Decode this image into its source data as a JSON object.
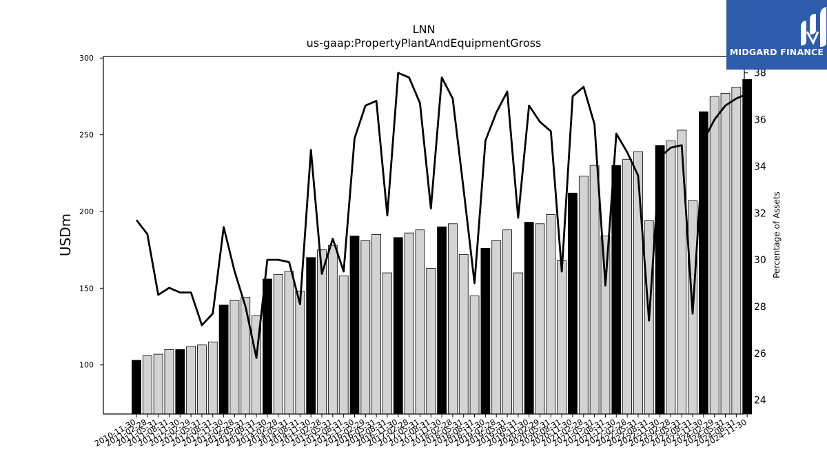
{
  "chart_data": {
    "type": "bar",
    "title": "LNN",
    "subtitle": "us-gaap:PropertyPlantAndEquipmentGross",
    "ylabel": "USDm",
    "y2label": "Percentage of Assets",
    "ylim": [
      68,
      301
    ],
    "y2lim": [
      23.4,
      38.7
    ],
    "yticks": [
      100,
      150,
      200,
      250,
      300
    ],
    "y2ticks": [
      24,
      26,
      28,
      30,
      32,
      34,
      36,
      38
    ],
    "grid": false,
    "colors": {
      "annual_bar": "#000000",
      "quarter_bar": "#d3d3d3",
      "line": "#000000",
      "bar_edge": "#000000"
    },
    "categories": [
      "2010-11-30",
      "2011-02-28",
      "2011-05-31",
      "2011-08-31",
      "2011-11-30",
      "2012-02-29",
      "2012-05-31",
      "2012-08-31",
      "2012-11-30",
      "2013-02-28",
      "2013-05-31",
      "2013-08-31",
      "2013-11-30",
      "2014-02-28",
      "2014-05-31",
      "2014-08-31",
      "2014-11-30",
      "2015-02-28",
      "2015-05-31",
      "2015-08-31",
      "2015-11-30",
      "2016-02-29",
      "2016-05-31",
      "2016-08-31",
      "2016-11-30",
      "2017-02-28",
      "2017-05-31",
      "2017-08-31",
      "2017-11-30",
      "2018-02-28",
      "2018-05-31",
      "2018-08-31",
      "2018-11-30",
      "2019-02-28",
      "2019-05-31",
      "2019-08-31",
      "2019-11-30",
      "2020-02-29",
      "2020-05-31",
      "2020-08-31",
      "2020-11-30",
      "2021-02-28",
      "2021-05-31",
      "2021-08-31",
      "2021-11-30",
      "2022-02-28",
      "2022-05-31",
      "2022-08-31",
      "2022-11-30",
      "2023-02-28",
      "2023-05-31",
      "2023-08-31",
      "2023-11-30",
      "2024-02-29",
      "2024-05-31",
      "2024-08-31",
      "2024-11-30"
    ],
    "series": [
      {
        "kind": "bar",
        "values": [
          103,
          106,
          107,
          110,
          110,
          112,
          113,
          115,
          139,
          142,
          144,
          132,
          156,
          159,
          161,
          148,
          170,
          175,
          178,
          158,
          184,
          181,
          185,
          160,
          183,
          186,
          188,
          163,
          190,
          192,
          172,
          145,
          176,
          181,
          188,
          160,
          193,
          192,
          198,
          168,
          212,
          223,
          230,
          184,
          230,
          234,
          239,
          194,
          243,
          246,
          253,
          207,
          265,
          275,
          277,
          281,
          286
        ],
        "is_annual": [
          true,
          false,
          false,
          false,
          true,
          false,
          false,
          false,
          true,
          false,
          false,
          false,
          true,
          false,
          false,
          false,
          true,
          false,
          false,
          false,
          true,
          false,
          false,
          false,
          true,
          false,
          false,
          false,
          true,
          false,
          false,
          false,
          true,
          false,
          false,
          false,
          true,
          false,
          false,
          false,
          true,
          false,
          false,
          false,
          true,
          false,
          false,
          false,
          true,
          false,
          false,
          false,
          true,
          false,
          false,
          false,
          true
        ]
      },
      {
        "kind": "line",
        "axis": "right",
        "values": [
          31.7,
          31.1,
          28.5,
          28.8,
          28.6,
          28.6,
          27.2,
          27.7,
          31.4,
          29.5,
          28.0,
          25.8,
          30.0,
          30.0,
          29.9,
          28.1,
          34.7,
          29.4,
          30.9,
          29.5,
          35.2,
          36.6,
          36.8,
          31.9,
          38.0,
          37.8,
          36.7,
          32.2,
          37.8,
          36.9,
          33.0,
          29.0,
          35.1,
          36.3,
          37.2,
          31.8,
          36.6,
          35.9,
          35.5,
          29.5,
          37.0,
          37.4,
          35.8,
          28.9,
          35.4,
          34.6,
          33.6,
          27.4,
          34.4,
          34.8,
          34.9,
          27.7,
          35.1,
          36.0,
          36.6,
          36.9,
          37.1
        ]
      }
    ]
  },
  "logo": {
    "text": "MIDGARD FINANCE"
  }
}
